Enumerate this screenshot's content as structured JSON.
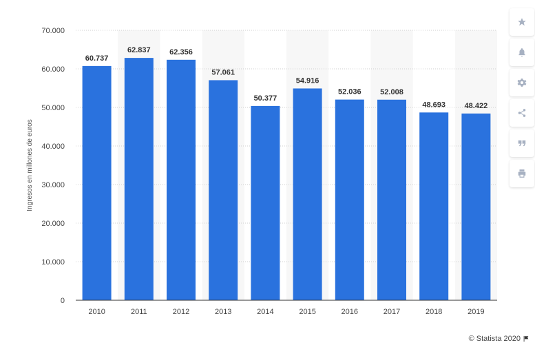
{
  "chart_data": {
    "type": "bar",
    "title": "",
    "xlabel": "",
    "ylabel": "Ingresos en millones de euros",
    "categories": [
      "2010",
      "2011",
      "2012",
      "2013",
      "2014",
      "2015",
      "2016",
      "2017",
      "2018",
      "2019"
    ],
    "values": [
      60737,
      62837,
      62356,
      57061,
      50377,
      54916,
      52036,
      52008,
      48693,
      48422
    ],
    "value_labels": [
      "60.737",
      "62.837",
      "62.356",
      "57.061",
      "50.377",
      "54.916",
      "52.036",
      "52.008",
      "48.693",
      "48.422"
    ],
    "ylim": [
      0,
      70000
    ],
    "yticks": [
      0,
      10000,
      20000,
      30000,
      40000,
      50000,
      60000,
      70000
    ],
    "ytick_labels": [
      "0",
      "10.000",
      "20.000",
      "30.000",
      "40.000",
      "50.000",
      "60.000",
      "70.000"
    ],
    "bar_color": "#2a72de",
    "grid": true
  },
  "toolbar": {
    "items": [
      {
        "name": "favorite",
        "icon": "star-icon"
      },
      {
        "name": "notification",
        "icon": "bell-icon"
      },
      {
        "name": "settings",
        "icon": "gear-icon"
      },
      {
        "name": "share",
        "icon": "share-icon"
      },
      {
        "name": "cite",
        "icon": "quote-icon"
      },
      {
        "name": "print",
        "icon": "print-icon"
      }
    ]
  },
  "credit": {
    "text": "© Statista 2020"
  }
}
